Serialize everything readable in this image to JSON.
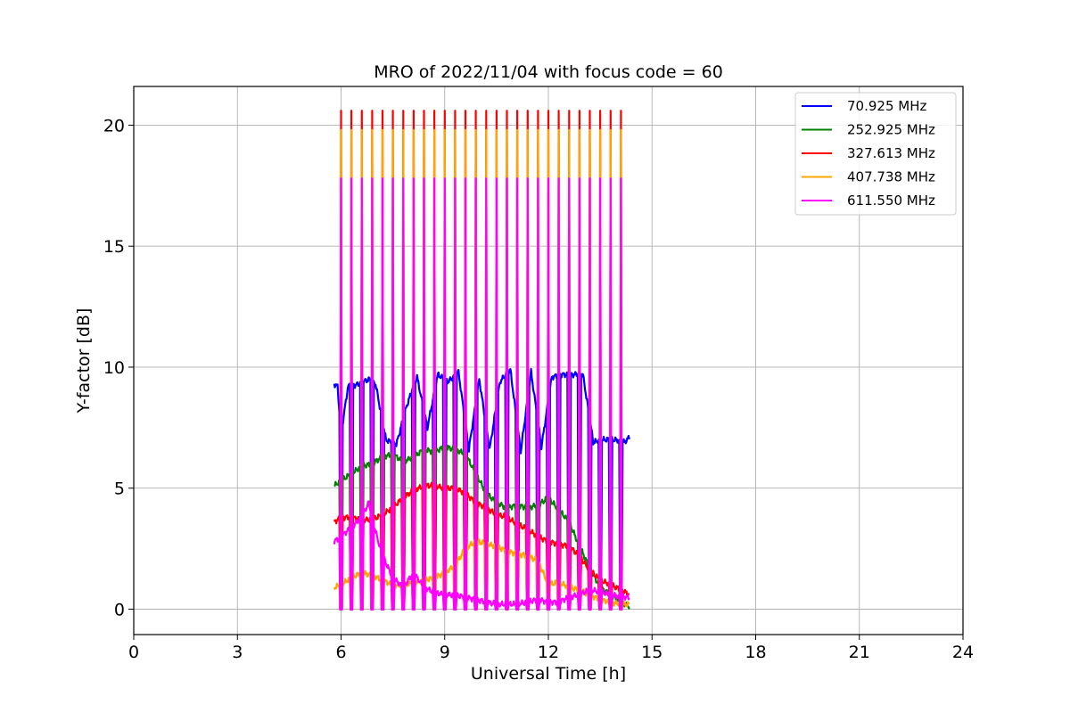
{
  "chart_data": {
    "type": "line",
    "title": "MRO of 2022/11/04 with focus code = 60",
    "xlabel": "Universal Time [h]",
    "ylabel": "Y-factor [dB]",
    "xlim": [
      0,
      24
    ],
    "ylim": [
      -1.05,
      21.6
    ],
    "xticks": [
      "0",
      "3",
      "6",
      "9",
      "12",
      "15",
      "18",
      "21",
      "24"
    ],
    "yticks": [
      "0",
      "5",
      "10",
      "15",
      "20"
    ],
    "grid": true,
    "legend_position": "top-right",
    "calibration_pulses": {
      "start_h": 6.0,
      "interval_h": 0.3,
      "count": 28,
      "description": "periodic calibration spikes on all channels"
    },
    "series": [
      {
        "name": " 70.925 MHz",
        "color": "#0000ff",
        "pulse_peak": 0.6,
        "x": [
          5.8,
          5.9,
          6.0,
          6.2,
          6.5,
          6.8,
          7.0,
          7.3,
          7.6,
          7.9,
          8.2,
          8.5,
          8.8,
          9.1,
          9.4,
          9.7,
          10.0,
          10.3,
          10.6,
          10.9,
          11.2,
          11.5,
          11.8,
          12.1,
          12.4,
          12.7,
          13.0,
          13.3,
          13.6,
          13.9,
          14.2,
          14.35
        ],
        "y": [
          9.3,
          9.2,
          7.2,
          9.2,
          9.3,
          9.5,
          9.3,
          7.0,
          6.8,
          8.4,
          9.6,
          7.5,
          9.7,
          9.4,
          9.8,
          6.6,
          9.5,
          6.6,
          9.4,
          9.9,
          6.5,
          9.8,
          6.7,
          9.6,
          9.7,
          9.7,
          9.7,
          6.9,
          7.0,
          7.0,
          6.9,
          7.1
        ]
      },
      {
        "name": "252.925 MHz",
        "color": "#008000",
        "pulse_peak": 5.5,
        "x": [
          5.8,
          6.0,
          6.3,
          6.6,
          6.9,
          7.2,
          7.5,
          7.8,
          8.1,
          8.4,
          8.7,
          9.0,
          9.3,
          9.6,
          9.9,
          10.2,
          10.5,
          10.8,
          11.1,
          11.4,
          11.7,
          12.0,
          12.3,
          12.6,
          12.9,
          13.2,
          13.5,
          13.8,
          14.1,
          14.35
        ],
        "y": [
          5.1,
          5.3,
          5.6,
          5.9,
          6.0,
          6.3,
          6.4,
          6.1,
          6.3,
          6.6,
          6.5,
          6.7,
          6.6,
          6.4,
          5.6,
          4.8,
          4.4,
          4.2,
          4.3,
          4.2,
          4.3,
          4.6,
          4.1,
          3.6,
          2.6,
          1.7,
          0.9,
          0.6,
          0.3,
          0.1
        ]
      },
      {
        "name": "327.613 MHz",
        "color": "#ff0000",
        "pulse_peak": 20.6,
        "x": [
          5.8,
          6.0,
          6.3,
          6.6,
          6.9,
          7.2,
          7.5,
          7.8,
          8.1,
          8.4,
          8.7,
          9.0,
          9.3,
          9.6,
          9.9,
          10.2,
          10.5,
          10.8,
          11.1,
          11.4,
          11.7,
          12.0,
          12.3,
          12.6,
          12.9,
          13.2,
          13.5,
          13.8,
          14.1,
          14.35
        ],
        "y": [
          3.6,
          3.8,
          3.8,
          3.7,
          3.7,
          3.9,
          4.2,
          4.6,
          4.9,
          5.1,
          5.1,
          5.0,
          5.0,
          4.8,
          4.4,
          4.2,
          3.9,
          3.8,
          3.5,
          3.3,
          3.0,
          2.8,
          2.7,
          2.6,
          2.2,
          1.6,
          1.2,
          1.0,
          0.8,
          0.6
        ]
      },
      {
        "name": "407.738 MHz",
        "color": "#ffa500",
        "pulse_peak": 19.8,
        "x": [
          5.8,
          6.0,
          6.3,
          6.6,
          6.9,
          7.2,
          7.5,
          7.8,
          8.1,
          8.4,
          8.7,
          9.0,
          9.3,
          9.6,
          9.9,
          10.2,
          10.5,
          10.8,
          11.1,
          11.4,
          11.7,
          12.0,
          12.3,
          12.6,
          12.9,
          13.2,
          13.5,
          13.8,
          14.1,
          14.35
        ],
        "y": [
          0.9,
          1.0,
          1.3,
          1.5,
          1.4,
          1.2,
          1.0,
          1.0,
          1.1,
          1.2,
          1.3,
          1.5,
          1.8,
          2.5,
          2.8,
          2.7,
          2.6,
          2.4,
          2.3,
          2.2,
          2.0,
          1.0,
          1.1,
          0.9,
          0.8,
          0.6,
          0.4,
          0.3,
          0.2,
          0.2
        ]
      },
      {
        "name": "611.550 MHz",
        "color": "#ff00ff",
        "pulse_peak": 17.8,
        "x": [
          5.8,
          6.0,
          6.3,
          6.6,
          6.8,
          7.0,
          7.2,
          7.5,
          7.8,
          8.1,
          8.4,
          8.7,
          9.0,
          9.3,
          9.6,
          9.9,
          10.2,
          10.5,
          10.8,
          11.1,
          11.4,
          11.7,
          12.0,
          12.3,
          12.6,
          12.9,
          13.2,
          13.5,
          13.8,
          14.1,
          14.35
        ],
        "y": [
          2.8,
          3.0,
          3.4,
          3.8,
          4.4,
          3.2,
          2.2,
          1.3,
          0.9,
          1.5,
          0.9,
          0.7,
          0.6,
          0.6,
          0.5,
          0.4,
          0.3,
          0.2,
          0.2,
          0.2,
          0.3,
          0.4,
          0.3,
          0.3,
          0.5,
          0.6,
          0.8,
          0.7,
          0.6,
          0.5,
          0.5
        ]
      }
    ]
  }
}
